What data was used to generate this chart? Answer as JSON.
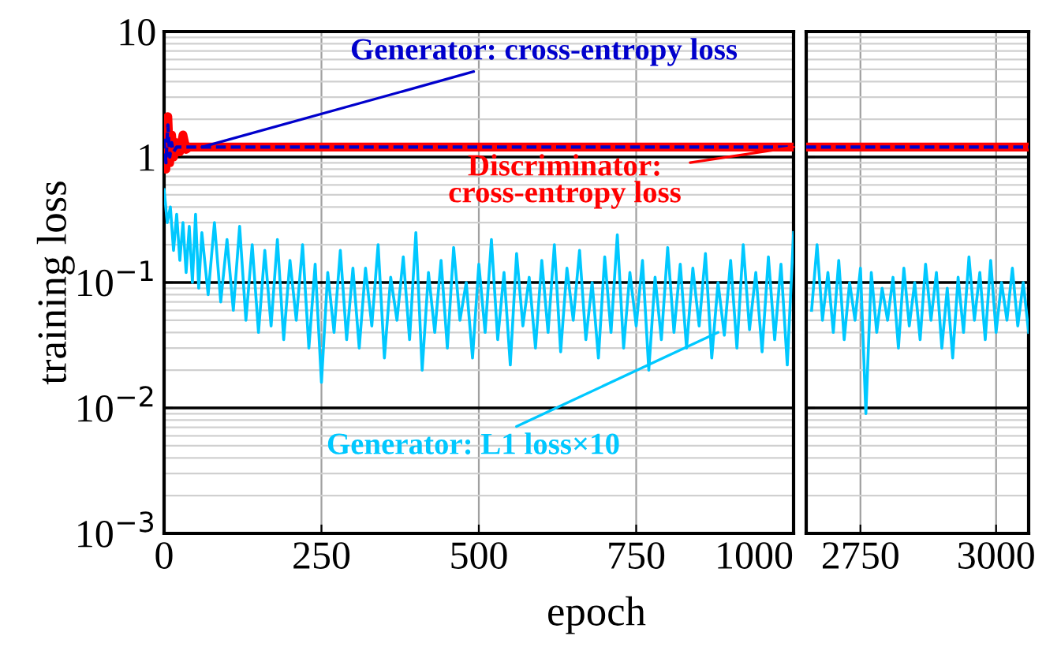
{
  "chart_data": [
    {
      "type": "line",
      "xlabel": "epoch",
      "ylabel": "training loss",
      "log": "y",
      "grid": true,
      "tick_labels": true,
      "xlim": [
        0,
        1000
      ],
      "xticks": [
        0,
        250,
        500,
        750,
        1000
      ],
      "ylim": [
        0.001,
        10
      ],
      "yticks": [
        {
          "value": 0.001,
          "label": "10$^{−3}$"
        },
        {
          "value": 0.01,
          "label": "10$^{−2}$"
        },
        {
          "value": 0.1,
          "label": "10$^{−1}$"
        },
        1,
        10
      ],
      "series": [
        {
          "color": "#ff0000",
          "line_style": "solid",
          "x": [
            0,
            3,
            6,
            9,
            12,
            15,
            20,
            25,
            30,
            35,
            40,
            1000
          ],
          "values": [
            1.6,
            0.8,
            2.1,
            0.9,
            1.5,
            1.0,
            1.3,
            1.1,
            1.5,
            1.15,
            1.2,
            1.2
          ]
        },
        {
          "color": "#0000cc",
          "line_style": "dashed",
          "x": [
            0,
            3,
            6,
            9,
            12,
            15,
            20,
            25,
            30,
            35,
            40,
            1000
          ],
          "values": [
            1.4,
            0.9,
            1.8,
            1.0,
            1.3,
            1.1,
            1.2,
            1.2,
            1.2,
            1.2,
            1.2,
            1.2
          ]
        },
        {
          "color": "#00c8ff",
          "line_style": "solid",
          "x": [
            0,
            5,
            10,
            15,
            20,
            25,
            30,
            35,
            40,
            45,
            50,
            55,
            60,
            70,
            80,
            90,
            100,
            110,
            120,
            130,
            140,
            150,
            160,
            170,
            180,
            190,
            200,
            210,
            220,
            230,
            240,
            250,
            260,
            270,
            280,
            290,
            300,
            310,
            320,
            330,
            340,
            350,
            360,
            370,
            380,
            390,
            400,
            410,
            420,
            430,
            440,
            450,
            460,
            470,
            480,
            490,
            500,
            510,
            520,
            530,
            540,
            550,
            560,
            570,
            580,
            590,
            600,
            610,
            620,
            630,
            640,
            650,
            660,
            670,
            680,
            690,
            700,
            710,
            720,
            730,
            740,
            750,
            760,
            770,
            780,
            790,
            800,
            810,
            820,
            830,
            840,
            850,
            860,
            870,
            880,
            890,
            900,
            910,
            920,
            930,
            940,
            950,
            960,
            970,
            980,
            990,
            1000
          ],
          "values": [
            0.55,
            0.3,
            0.4,
            0.18,
            0.35,
            0.15,
            0.3,
            0.12,
            0.28,
            0.1,
            0.35,
            0.09,
            0.25,
            0.08,
            0.3,
            0.07,
            0.22,
            0.06,
            0.28,
            0.05,
            0.2,
            0.04,
            0.18,
            0.045,
            0.22,
            0.035,
            0.15,
            0.05,
            0.2,
            0.03,
            0.14,
            0.016,
            0.12,
            0.04,
            0.18,
            0.035,
            0.13,
            0.03,
            0.13,
            0.045,
            0.2,
            0.025,
            0.11,
            0.05,
            0.16,
            0.035,
            0.25,
            0.02,
            0.12,
            0.04,
            0.15,
            0.03,
            0.19,
            0.05,
            0.1,
            0.025,
            0.14,
            0.04,
            0.22,
            0.035,
            0.12,
            0.022,
            0.17,
            0.045,
            0.11,
            0.03,
            0.15,
            0.04,
            0.2,
            0.028,
            0.13,
            0.05,
            0.18,
            0.035,
            0.1,
            0.025,
            0.16,
            0.04,
            0.24,
            0.03,
            0.12,
            0.045,
            0.15,
            0.02,
            0.11,
            0.035,
            0.19,
            0.04,
            0.14,
            0.03,
            0.13,
            0.045,
            0.17,
            0.025,
            0.1,
            0.038,
            0.15,
            0.03,
            0.2,
            0.042,
            0.12,
            0.028,
            0.16,
            0.035,
            0.14,
            0.022,
            0.25
          ]
        }
      ],
      "annotations": [
        {
          "text": "Generator: cross-entropy loss",
          "x": 60,
          "y": 1.2
        },
        {
          "text": "Discriminator:\ncross-entropy loss",
          "x": 1000,
          "y": 1.2
        },
        {
          "text": "Generator: L1 loss×10",
          "x": 880,
          "y": 0.04
        }
      ]
    },
    {
      "type": "line",
      "log": "y",
      "grid": true,
      "tick_labels": "x",
      "xlim": [
        2650,
        3060
      ],
      "xticks": [
        2750,
        3000
      ],
      "ylim": [
        0.001,
        10
      ],
      "yticks": [
        {
          "value": 0.001,
          "label": null
        },
        {
          "value": 0.01,
          "label": null
        },
        {
          "value": 0.1,
          "label": null
        },
        {
          "value": 1,
          "label": null
        },
        {
          "value": 10,
          "label": null
        }
      ],
      "series": [
        {
          "color": "#ff0000",
          "line_style": "solid",
          "x": [
            2650,
            3060
          ],
          "values": [
            1.2,
            1.2
          ]
        },
        {
          "color": "#0000cc",
          "line_style": "dashed",
          "x": [
            2650,
            3060
          ],
          "values": [
            1.2,
            1.2
          ]
        },
        {
          "color": "#00c8ff",
          "line_style": "solid",
          "x": [
            2660,
            2670,
            2680,
            2690,
            2700,
            2710,
            2720,
            2730,
            2740,
            2750,
            2760,
            2770,
            2780,
            2790,
            2800,
            2810,
            2820,
            2830,
            2840,
            2850,
            2860,
            2870,
            2880,
            2890,
            2900,
            2910,
            2920,
            2930,
            2940,
            2950,
            2960,
            2970,
            2980,
            2990,
            3000,
            3010,
            3020,
            3030,
            3040,
            3050,
            3060
          ],
          "values": [
            0.06,
            0.2,
            0.05,
            0.12,
            0.04,
            0.15,
            0.035,
            0.1,
            0.05,
            0.13,
            0.009,
            0.12,
            0.04,
            0.09,
            0.05,
            0.11,
            0.03,
            0.13,
            0.045,
            0.1,
            0.035,
            0.14,
            0.05,
            0.12,
            0.03,
            0.09,
            0.025,
            0.11,
            0.04,
            0.16,
            0.05,
            0.12,
            0.035,
            0.15,
            0.04,
            0.1,
            0.05,
            0.13,
            0.045,
            0.1,
            0.04
          ]
        }
      ]
    }
  ]
}
